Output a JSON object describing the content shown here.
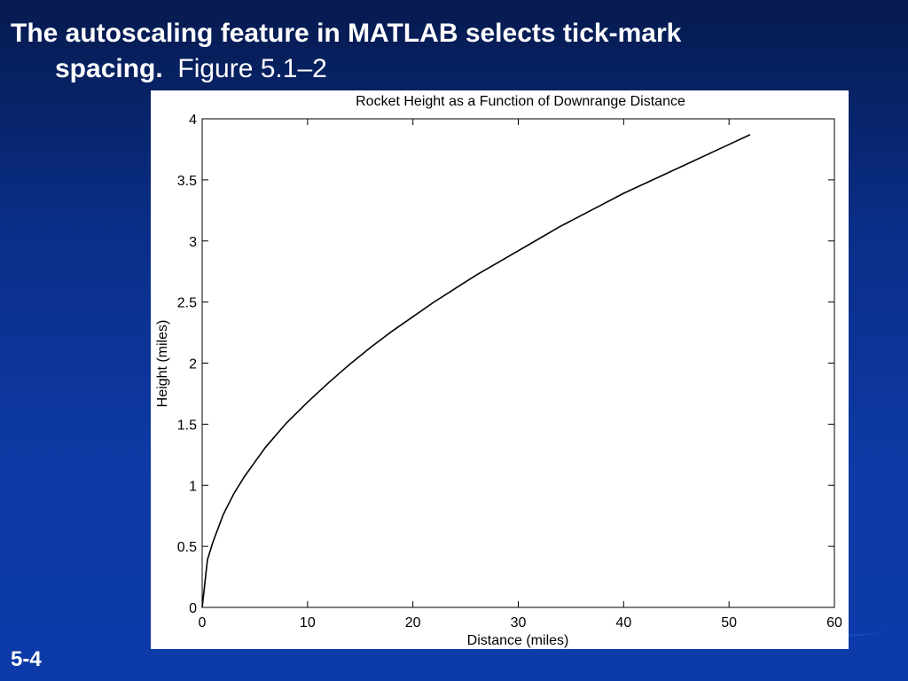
{
  "slide": {
    "title_line1": "The autoscaling feature in MATLAB selects tick-mark",
    "title_line2_bold": "spacing.",
    "title_line2_plain": "Figure 5.1–2",
    "number": "5-4"
  },
  "colors": {
    "background": "#0a2f8a",
    "plot_line": "#000000"
  },
  "chart_data": {
    "type": "line",
    "title": "Rocket Height as a Function of Downrange Distance",
    "xlabel": "Distance (miles)",
    "ylabel": "Height (miles)",
    "xlim": [
      0,
      60
    ],
    "ylim": [
      0,
      4
    ],
    "xticks": [
      0,
      10,
      20,
      30,
      40,
      50,
      60
    ],
    "yticks": [
      0,
      0.5,
      1,
      1.5,
      2,
      2.5,
      3,
      3.5,
      4
    ],
    "xtick_labels": [
      "0",
      "10",
      "20",
      "30",
      "40",
      "50",
      "60"
    ],
    "ytick_labels": [
      "0",
      "0.5",
      "1",
      "1.5",
      "2",
      "2.5",
      "3",
      "3.5",
      "4"
    ],
    "grid": false,
    "series": [
      {
        "x": [
          0,
          0.5,
          1,
          2,
          3,
          4,
          5,
          6,
          8,
          10,
          12,
          14,
          16,
          18,
          20,
          22,
          24,
          26,
          28,
          30,
          32,
          34,
          36,
          38,
          40,
          42,
          44,
          46,
          48,
          50,
          52
        ],
        "y": [
          0,
          0.39,
          0.53,
          0.76,
          0.93,
          1.07,
          1.19,
          1.31,
          1.51,
          1.68,
          1.84,
          1.99,
          2.13,
          2.26,
          2.38,
          2.5,
          2.61,
          2.72,
          2.82,
          2.92,
          3.02,
          3.12,
          3.21,
          3.3,
          3.39,
          3.47,
          3.55,
          3.63,
          3.71,
          3.79,
          3.87
        ]
      }
    ]
  }
}
